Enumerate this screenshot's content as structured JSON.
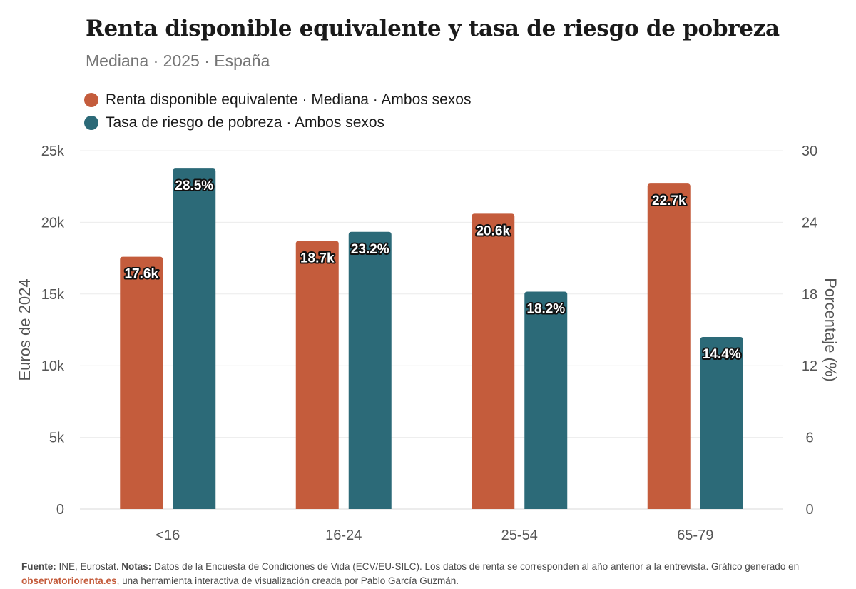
{
  "title": "Renta disponible equivalente y tasa de riesgo de pobreza",
  "subtitle": "Mediana · 2025 · España",
  "colors": {
    "renta": "#c45c3c",
    "tasa": "#2c6a78",
    "grid": "#ececec",
    "text": "#555555"
  },
  "chart_data": {
    "type": "bar",
    "categories": [
      "<16",
      "16-24",
      "25-54",
      "65-79"
    ],
    "series": [
      {
        "name": "Renta disponible equivalente · Mediana · Ambos sexos",
        "axis": "left",
        "values": [
          17600,
          18700,
          20600,
          22700
        ],
        "labels": [
          "17.6k",
          "18.7k",
          "20.6k",
          "22.7k"
        ]
      },
      {
        "name": "Tasa de riesgo de pobreza · Ambos sexos",
        "axis": "right",
        "values": [
          28.5,
          23.2,
          18.2,
          14.4
        ],
        "labels": [
          "28.5%",
          "23.2%",
          "18.2%",
          "14.4%"
        ]
      }
    ],
    "ylabel": "Euros de 2024",
    "ylim": [
      0,
      25000
    ],
    "yticks": [
      "0",
      "5k",
      "10k",
      "15k",
      "20k",
      "25k"
    ],
    "y2label": "Porcentaje (%)",
    "y2lim": [
      0,
      30
    ],
    "y2ticks": [
      "0",
      "6",
      "12",
      "18",
      "24",
      "30"
    ],
    "grid": true,
    "legend": "top-left"
  },
  "footer": {
    "fuente_label": "Fuente:",
    "fuente_text": " INE, Eurostat. ",
    "notas_label": "Notas:",
    "notas_text": " Datos de la Encuesta de Condiciones de Vida (ECV/EU-SILC). Los datos de renta se corresponden al año anterior a la entrevista. Gráfico generado en ",
    "site": "observatoriorenta.es",
    "tail": ", una herramienta interactiva de visualización creada por Pablo García Guzmán."
  }
}
